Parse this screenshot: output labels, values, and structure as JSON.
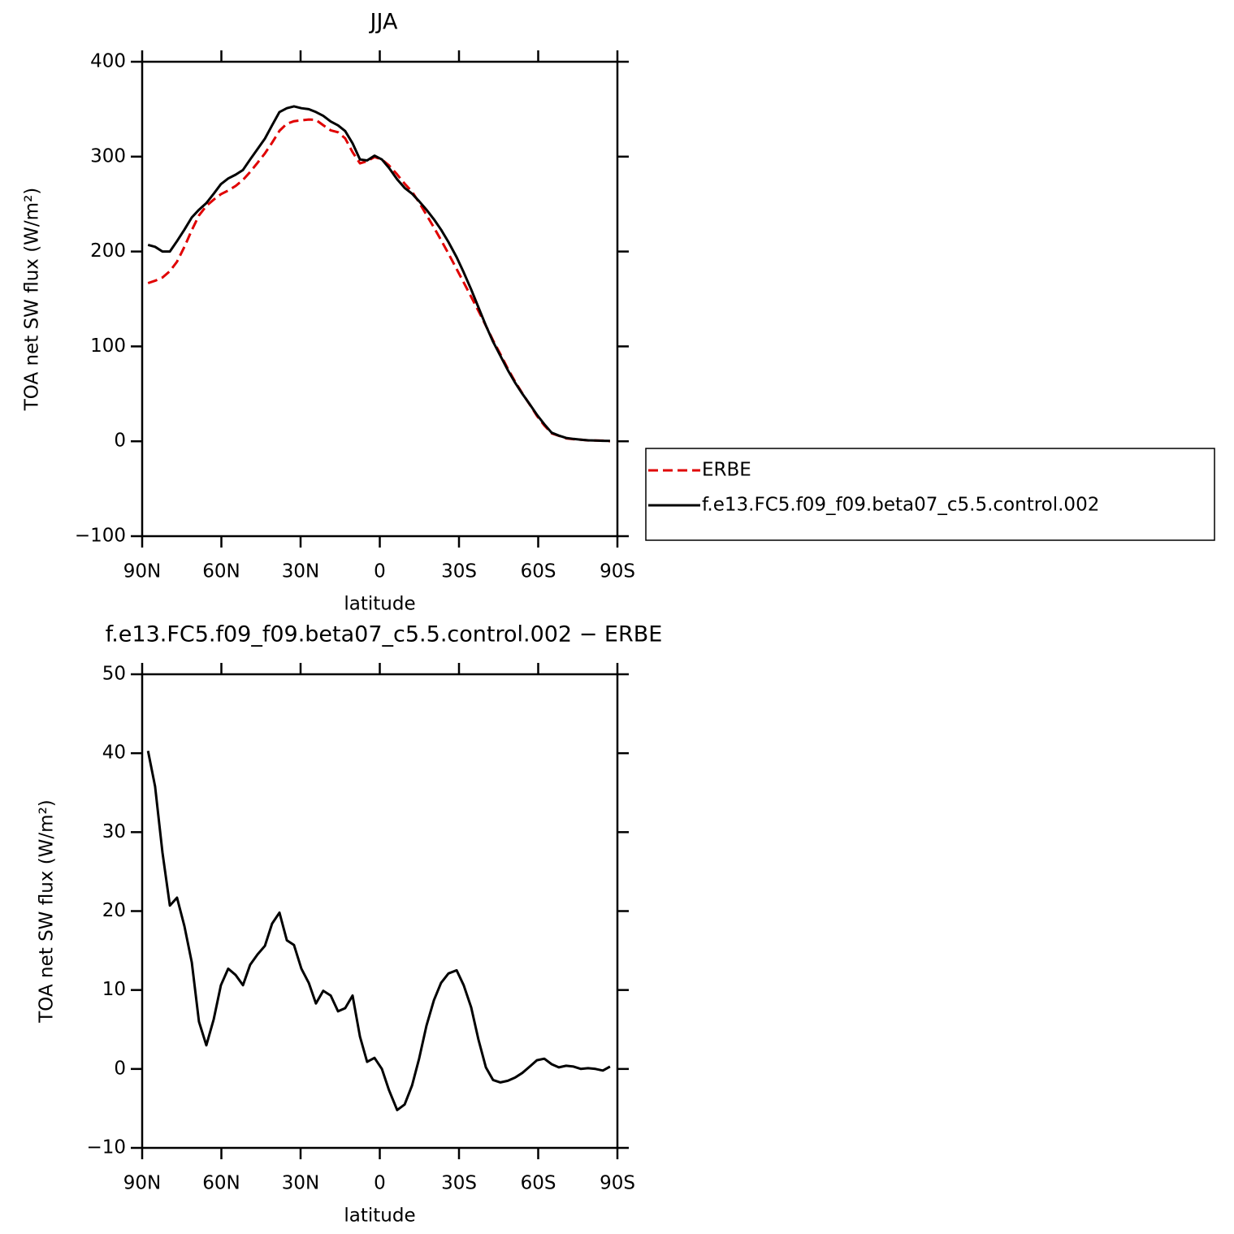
{
  "chart_data": [
    {
      "type": "line",
      "title": "JJA",
      "xlabel": "latitude",
      "ylabel": "TOA net SW flux (W/m²)",
      "x": [
        87.8,
        85.1,
        82.3,
        79.5,
        76.8,
        74.0,
        71.2,
        68.5,
        65.7,
        62.9,
        60.2,
        57.4,
        54.6,
        51.8,
        49.1,
        46.3,
        43.5,
        40.8,
        38.0,
        35.2,
        32.5,
        29.7,
        26.9,
        24.2,
        21.4,
        18.6,
        15.8,
        13.1,
        10.3,
        7.5,
        4.8,
        2.0,
        -0.8,
        -3.5,
        -6.6,
        -9.4,
        -12.2,
        -14.9,
        -17.7,
        -20.5,
        -23.2,
        -26.0,
        -29.1,
        -31.8,
        -34.6,
        -37.4,
        -40.2,
        -42.9,
        -45.7,
        -48.5,
        -51.2,
        -54.0,
        -56.8,
        -59.5,
        -62.3,
        -65.1,
        -67.8,
        -70.6,
        -73.4,
        -76.2,
        -78.9,
        -81.7,
        -84.5,
        -87.2
      ],
      "series": [
        {
          "name": "ERBE",
          "color": "#e00000",
          "style": "dashed",
          "values": [
            166.7,
            169.2,
            172.6,
            179.3,
            189.3,
            204.9,
            222.5,
            238,
            248,
            254.7,
            260.4,
            264.3,
            269.1,
            275.4,
            283.8,
            293.5,
            303.4,
            314.6,
            327.2,
            334.7,
            337.3,
            338.3,
            339.1,
            338.7,
            333.1,
            327.7,
            325.7,
            319.3,
            304.7,
            292.9,
            295.1,
            299.6,
            297,
            290.7,
            281.2,
            271.5,
            263.1,
            251.7,
            238.5,
            225.3,
            212.1,
            197.9,
            181.5,
            167.4,
            152.2,
            137.3,
            121.8,
            106.4,
            91.7,
            76.5,
            63.1,
            50.5,
            38.7,
            26.9,
            16.7,
            8.4,
            5.8,
            3.1,
            2.2,
            1.7,
            0.9,
            0.8,
            0.7,
            0.1
          ]
        },
        {
          "name": "f.e13.FC5.f09_f09.beta07_c5.5.control.002",
          "color": "#000000",
          "style": "solid",
          "values": [
            207,
            205,
            200,
            200,
            211,
            223,
            236,
            244,
            251,
            261,
            271,
            277,
            281,
            286,
            297,
            308,
            319,
            333,
            347,
            351,
            353,
            351,
            350,
            347,
            343,
            337,
            333,
            327,
            314,
            297,
            296,
            301,
            297,
            288,
            276,
            267,
            261,
            253,
            244,
            234,
            223,
            210,
            194,
            178,
            160,
            141,
            122,
            105,
            90,
            75,
            62,
            50,
            39,
            28,
            18,
            9,
            6,
            3.5,
            2.5,
            1.7,
            1,
            0.8,
            0.5,
            0.4
          ]
        }
      ],
      "xlim": [
        90,
        -90
      ],
      "xticks": [
        {
          "value": 90,
          "label": "90N"
        },
        {
          "value": 60,
          "label": "60N"
        },
        {
          "value": 30,
          "label": "30N"
        },
        0,
        {
          "value": -30,
          "label": "30S"
        },
        {
          "value": -60,
          "label": "60S"
        },
        {
          "value": -90,
          "label": "90S"
        }
      ],
      "ylim": [
        -100,
        400
      ],
      "yticks": [
        {
          "value": -100,
          "label": "−100"
        },
        0,
        100,
        200,
        300,
        400
      ],
      "legend": "outside right"
    },
    {
      "type": "line",
      "title": "f.e13.FC5.f09_f09.beta07_c5.5.control.002 − ERBE",
      "xlabel": "latitude",
      "ylabel": "TOA net SW flux (W/m²)",
      "x": [
        87.8,
        85.1,
        82.3,
        79.5,
        76.8,
        74.0,
        71.2,
        68.5,
        65.7,
        62.9,
        60.2,
        57.4,
        54.6,
        51.8,
        49.1,
        46.3,
        43.5,
        40.8,
        38.0,
        35.2,
        32.5,
        29.7,
        26.9,
        24.2,
        21.4,
        18.6,
        15.8,
        13.1,
        10.3,
        7.5,
        4.8,
        2.0,
        -0.8,
        -3.5,
        -6.6,
        -9.4,
        -12.2,
        -14.9,
        -17.7,
        -20.5,
        -23.2,
        -26.0,
        -29.1,
        -31.8,
        -34.6,
        -37.4,
        -40.2,
        -42.9,
        -45.7,
        -48.5,
        -51.2,
        -54.0,
        -56.8,
        -59.5,
        -62.3,
        -65.1,
        -67.8,
        -70.6,
        -73.4,
        -76.2,
        -78.9,
        -81.7,
        -84.5,
        -87.2
      ],
      "color": "#000000",
      "values": [
        40.3,
        35.8,
        27.4,
        20.7,
        21.7,
        18.1,
        13.5,
        6.0,
        3.0,
        6.3,
        10.6,
        12.7,
        11.9,
        10.6,
        13.2,
        14.5,
        15.6,
        18.4,
        19.8,
        16.3,
        15.7,
        12.7,
        10.9,
        8.3,
        9.9,
        9.3,
        7.3,
        7.7,
        9.3,
        4.1,
        0.9,
        1.4,
        0,
        -2.7,
        -5.2,
        -4.5,
        -2.1,
        1.3,
        5.5,
        8.7,
        10.9,
        12.1,
        12.5,
        10.6,
        7.8,
        3.7,
        0.2,
        -1.4,
        -1.7,
        -1.5,
        -1.1,
        -0.5,
        0.3,
        1.1,
        1.3,
        0.6,
        0.2,
        0.4,
        0.3,
        0,
        0.1,
        0,
        -0.2,
        0.3
      ],
      "xlim": [
        90,
        -90
      ],
      "xticks": [
        {
          "value": 90,
          "label": "90N"
        },
        {
          "value": 60,
          "label": "60N"
        },
        {
          "value": 30,
          "label": "30N"
        },
        0,
        {
          "value": -30,
          "label": "30S"
        },
        {
          "value": -60,
          "label": "60S"
        },
        {
          "value": -90,
          "label": "90S"
        }
      ],
      "ylim": [
        -10,
        50
      ],
      "yticks": [
        {
          "value": -10,
          "label": "−10"
        },
        0,
        10,
        20,
        30,
        40,
        50
      ]
    }
  ]
}
